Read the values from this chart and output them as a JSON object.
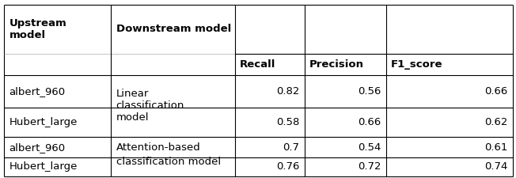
{
  "bg_color": "#ffffff",
  "border_color": "#000000",
  "text_color": "#000000",
  "font_size": 9.5,
  "figsize": [
    6.52,
    2.25
  ],
  "dpi": 100,
  "cols": {
    "c0": 0.008,
    "c1": 0.215,
    "c2": 0.455,
    "c3": 0.59,
    "c4": 0.748,
    "c5": 0.994
  },
  "rows": {
    "r0": 0.975,
    "r_header_sub": 0.7,
    "r1": 0.58,
    "r2": 0.395,
    "r3": 0.23,
    "r4": 0.115,
    "r5": 0.01
  },
  "cells": {
    "header_upstream": "Upstream\nmodel",
    "header_downstream": "Downstream model",
    "header_recall": "Recall",
    "header_precision": "Precision",
    "header_f1": "F1_score",
    "r1_upstream": "albert_960",
    "r1_downstream": "Linear\nclassification\nmodel",
    "r1_recall": "0.82",
    "r1_precision": "0.56",
    "r1_f1": "0.66",
    "r2_upstream": "Hubert_large",
    "r2_recall": "0.58",
    "r2_precision": "0.66",
    "r2_f1": "0.62",
    "r3_upstream": "albert_960",
    "r3_downstream_line1": "Attention-based",
    "r4_downstream_line1": "classification model",
    "r3_recall": "0.7",
    "r3_precision": "0.54",
    "r3_f1": "0.61",
    "r4_upstream": "Hubert_large",
    "r4_recall": "0.76",
    "r4_precision": "0.72",
    "r4_f1": "0.74"
  }
}
